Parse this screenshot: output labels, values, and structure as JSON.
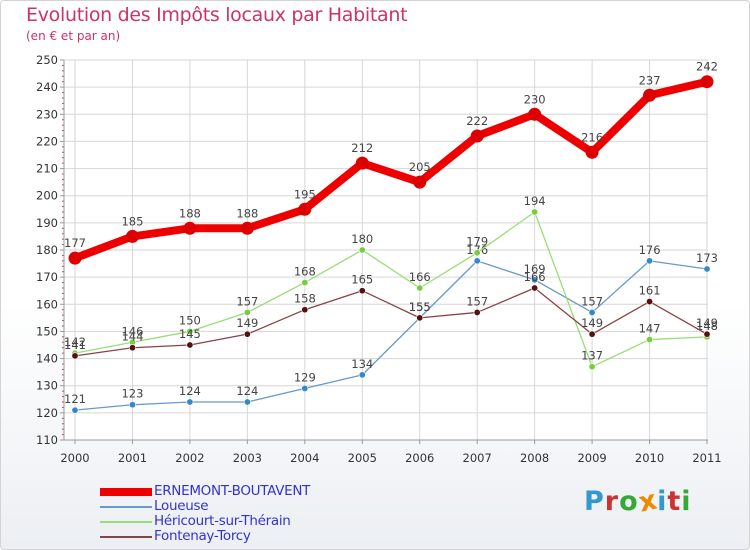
{
  "title": "Evolution des Impôts locaux par Habitant",
  "subtitle": "(en € et par an)",
  "logo": {
    "text": "Proxiti",
    "colors": [
      "#3399cc",
      "#cc3333",
      "#33aa33",
      "#ee8800",
      "#3399cc",
      "#cc3333",
      "#33aa33"
    ]
  },
  "chart_data": {
    "type": "line",
    "x": [
      "2000",
      "2001",
      "2002",
      "2003",
      "2004",
      "2005",
      "2006",
      "2007",
      "2008",
      "2009",
      "2010",
      "2011"
    ],
    "ylim": [
      110,
      250
    ],
    "yticks": [
      "110",
      "120",
      "130",
      "140",
      "150",
      "160",
      "170",
      "180",
      "190",
      "200",
      "210",
      "220",
      "230",
      "240",
      "250"
    ],
    "grid": true,
    "legend_position": "bottom-left",
    "series": [
      {
        "name": "ERNEMONT-BOUTAVENT",
        "color": "#ee0000",
        "marker": "#dd0000",
        "bold": true,
        "values": [
          177,
          185,
          188,
          188,
          195,
          212,
          205,
          222,
          230,
          216,
          237,
          242
        ],
        "labels": [
          "177",
          "185",
          "188",
          "188",
          "195",
          "212",
          "205",
          "222",
          "230",
          "216",
          "237",
          "242"
        ]
      },
      {
        "name": "Loueuse",
        "color": "#6699cc",
        "marker": "#3388cc",
        "bold": false,
        "values": [
          121,
          123,
          124,
          124,
          129,
          134,
          155,
          176,
          169,
          157,
          176,
          173
        ],
        "labels": [
          "121",
          "123",
          "124",
          "124",
          "129",
          "134",
          "155",
          "176",
          "169",
          "157",
          "176",
          "173"
        ]
      },
      {
        "name": "Héricourt-sur-Thérain",
        "color": "#99dd77",
        "marker": "#77cc44",
        "bold": false,
        "values": [
          142,
          146,
          150,
          157,
          168,
          180,
          166,
          179,
          194,
          137,
          147,
          148
        ],
        "labels": [
          "142",
          "146",
          "150",
          "157",
          "168",
          "180",
          "166",
          "179",
          "194",
          "137",
          "147",
          "148"
        ]
      },
      {
        "name": "Fontenay-Torcy",
        "color": "#884444",
        "marker": "#551111",
        "bold": false,
        "values": [
          141,
          144,
          145,
          149,
          158,
          165,
          155,
          157,
          166,
          149,
          161,
          149
        ],
        "labels": [
          "141",
          "144",
          "145",
          "149",
          "158",
          "165",
          "155",
          "157",
          "166",
          "149",
          "161",
          "149"
        ]
      }
    ]
  }
}
